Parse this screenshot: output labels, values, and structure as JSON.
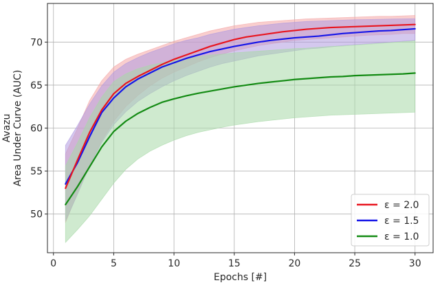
{
  "chart_data": {
    "type": "line",
    "xlabel": "Epochs [#]",
    "ylabel_lines": [
      "Avazu",
      "Area Under Curve (AUC)"
    ],
    "xlim": [
      -0.5,
      31.5
    ],
    "ylim": [
      45.5,
      74.5
    ],
    "xticks": [
      0,
      5,
      10,
      15,
      20,
      25,
      30
    ],
    "yticks": [
      50,
      55,
      60,
      65,
      70
    ],
    "grid": true,
    "legend_position": "lower-right",
    "x": [
      1,
      2,
      3,
      4,
      5,
      6,
      7,
      8,
      9,
      10,
      11,
      12,
      13,
      14,
      15,
      16,
      17,
      18,
      19,
      20,
      21,
      22,
      23,
      24,
      25,
      26,
      27,
      28,
      29,
      30
    ],
    "series": [
      {
        "name": "ε = 2.0",
        "color": "#e8141e",
        "band_color": "#f4a6a6",
        "values": [
          53.0,
          56.3,
          59.5,
          62.1,
          64.0,
          65.2,
          66.0,
          66.7,
          67.4,
          68.0,
          68.5,
          69.0,
          69.5,
          69.9,
          70.3,
          70.6,
          70.8,
          71.0,
          71.2,
          71.35,
          71.5,
          71.6,
          71.7,
          71.75,
          71.8,
          71.85,
          71.9,
          71.95,
          72.0,
          72.05
        ],
        "lower": [
          49.0,
          52.5,
          55.7,
          58.5,
          60.8,
          62.5,
          63.8,
          64.9,
          65.8,
          66.5,
          67.1,
          67.7,
          68.2,
          68.6,
          69.0,
          69.3,
          69.6,
          69.8,
          70.0,
          70.2,
          70.3,
          70.4,
          70.5,
          70.6,
          70.7,
          70.8,
          70.85,
          70.9,
          71.0,
          71.0
        ],
        "upper": [
          57.0,
          60.0,
          63.2,
          65.5,
          67.1,
          68.0,
          68.6,
          69.1,
          69.6,
          70.1,
          70.5,
          70.9,
          71.3,
          71.6,
          71.9,
          72.1,
          72.3,
          72.4,
          72.5,
          72.6,
          72.7,
          72.75,
          72.8,
          72.85,
          72.9,
          72.95,
          73.0,
          73.0,
          73.05,
          73.1
        ]
      },
      {
        "name": "ε = 1.5",
        "color": "#1414e8",
        "band_color": "#b09ae0",
        "values": [
          53.5,
          56.0,
          59.0,
          61.8,
          63.5,
          64.8,
          65.7,
          66.4,
          67.1,
          67.6,
          68.1,
          68.5,
          68.9,
          69.2,
          69.5,
          69.75,
          70.0,
          70.2,
          70.35,
          70.5,
          70.6,
          70.7,
          70.85,
          71.0,
          71.1,
          71.2,
          71.3,
          71.35,
          71.45,
          71.55
        ],
        "lower": [
          49.2,
          52.3,
          55.6,
          58.3,
          60.4,
          61.9,
          63.1,
          64.0,
          64.8,
          65.5,
          66.1,
          66.6,
          67.1,
          67.5,
          67.8,
          68.1,
          68.4,
          68.6,
          68.8,
          69.0,
          69.2,
          69.3,
          69.45,
          69.6,
          69.7,
          69.8,
          69.9,
          70.0,
          70.1,
          70.2
        ],
        "upper": [
          58.0,
          60.3,
          62.8,
          64.9,
          66.5,
          67.5,
          68.2,
          68.8,
          69.3,
          69.8,
          70.2,
          70.5,
          70.9,
          71.2,
          71.5,
          71.7,
          71.9,
          72.05,
          72.2,
          72.3,
          72.4,
          72.45,
          72.5,
          72.55,
          72.6,
          72.62,
          72.65,
          72.68,
          72.7,
          72.72
        ]
      },
      {
        "name": "ε = 1.0",
        "color": "#128a12",
        "band_color": "#a8d8a8",
        "values": [
          51.1,
          53.2,
          55.5,
          57.8,
          59.6,
          60.8,
          61.7,
          62.4,
          63.0,
          63.4,
          63.75,
          64.05,
          64.3,
          64.55,
          64.8,
          65.0,
          65.2,
          65.35,
          65.5,
          65.65,
          65.75,
          65.85,
          65.95,
          66.0,
          66.1,
          66.15,
          66.2,
          66.25,
          66.3,
          66.4
        ],
        "lower": [
          46.7,
          48.2,
          49.8,
          51.7,
          53.6,
          55.2,
          56.4,
          57.3,
          58.0,
          58.6,
          59.1,
          59.5,
          59.8,
          60.1,
          60.35,
          60.55,
          60.75,
          60.9,
          61.05,
          61.2,
          61.3,
          61.4,
          61.5,
          61.55,
          61.6,
          61.65,
          61.7,
          61.75,
          61.8,
          61.85
        ],
        "upper": [
          55.6,
          58.3,
          61.2,
          63.6,
          65.4,
          66.3,
          66.9,
          67.3,
          67.6,
          67.9,
          68.1,
          68.3,
          68.5,
          68.6,
          68.75,
          68.85,
          68.95,
          69.05,
          69.15,
          69.25,
          69.3,
          69.4,
          69.5,
          69.55,
          69.65,
          69.75,
          69.85,
          69.95,
          70.05,
          70.15
        ]
      }
    ]
  }
}
